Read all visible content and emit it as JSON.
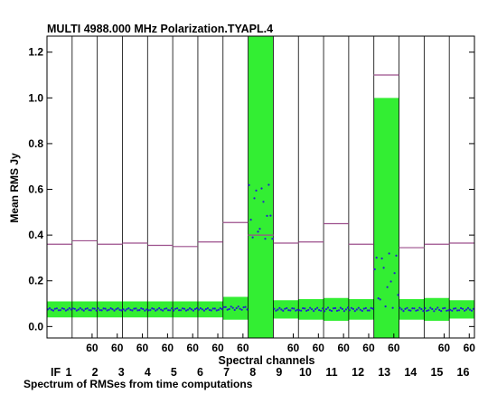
{
  "chart_data": {
    "type": "line",
    "title": "MULTI 4988.000 MHz  Polarization.TYAPL.4",
    "xlabel": "Spectral channels",
    "ylabel": "Mean RMS Jy",
    "footer": "Spectrum of RMSes from time computations",
    "ylim": [
      -0.05,
      1.27
    ],
    "yticks": [
      "0.0",
      "0.2",
      "0.4",
      "0.6",
      "0.8",
      "1.0",
      "1.2"
    ],
    "ytick_values": [
      0.0,
      0.2,
      0.4,
      0.6,
      0.8,
      1.0,
      1.2
    ],
    "channels_per_if": 64,
    "x_tick_label": "60",
    "if_prefix": "IF",
    "if_labels": [
      "1",
      "2",
      "3",
      "4",
      "5",
      "6",
      "7",
      "8",
      "9",
      "10",
      "11",
      "12",
      "13",
      "14",
      "15",
      "16"
    ],
    "colors": {
      "band": "#33ee33",
      "points": "#2222cc",
      "mean_line": "#9c4f8c",
      "frame": "#000000"
    },
    "series": [
      {
        "values": {
          "mean_rms": [
            0.36,
            0.375,
            0.36,
            0.365,
            0.355,
            0.35,
            0.37,
            0.455,
            0.4,
            0.365,
            0.37,
            0.45,
            0.36,
            1.1,
            0.345,
            0.36,
            0.365
          ],
          "median_point": [
            0.075,
            0.075,
            0.075,
            0.075,
            0.075,
            0.075,
            0.075,
            0.08,
            0.5,
            0.075,
            0.075,
            0.075,
            0.075,
            0.2,
            0.075,
            0.075,
            0.075
          ],
          "band_halfwidth": [
            0.035,
            0.035,
            0.035,
            0.035,
            0.035,
            0.035,
            0.035,
            0.05,
            0.8,
            0.04,
            0.045,
            0.05,
            0.045,
            0.8,
            0.045,
            0.05,
            0.04
          ]
        }
      }
    ]
  }
}
